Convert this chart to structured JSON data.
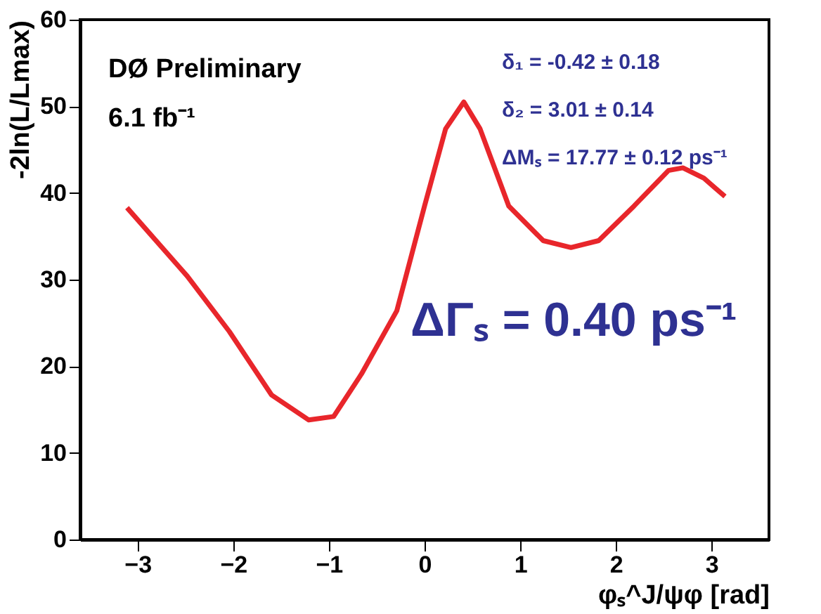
{
  "chart_data": {
    "type": "line",
    "xlabel": "φₛ^J/ψφ [rad]",
    "ylabel": "-2ln(L/Lmax)",
    "x": [
      -3.11,
      -2.48,
      -2.04,
      -1.6,
      -1.21,
      -0.95,
      -0.66,
      -0.29,
      0,
      0.22,
      0.41,
      0.58,
      0.88,
      1.24,
      1.53,
      1.82,
      2.19,
      2.55,
      2.7,
      2.92,
      3.14
    ],
    "series": [
      {
        "color": "#e8262b",
        "values": [
          38.3,
          30.4,
          24,
          16.7,
          13.8,
          14.2,
          19.1,
          26.4,
          38.5,
          47.4,
          50.5,
          47.4,
          38.5,
          34.5,
          33.7,
          34.5,
          38.5,
          42.6,
          42.9,
          41.7,
          39.6
        ]
      }
    ],
    "xlim": [
      -3.6,
      3.6
    ],
    "ylim": [
      0,
      60
    ],
    "xticks": [
      -3,
      -2,
      -1,
      0,
      1,
      2,
      3
    ],
    "yticks": [
      0,
      10,
      20,
      30,
      40,
      50,
      60
    ],
    "grid": false,
    "marker": "none",
    "line_style": "solid",
    "annotations": [
      "DØ Preliminary",
      "6.1 fb⁻¹",
      "δ₁ = -0.42 ± 0.18",
      "δ₂ = 3.01 ± 0.14",
      "ΔMₛ = 17.77 ± 0.12 ps⁻¹",
      "ΔΓₛ = 0.40 ps⁻¹"
    ]
  }
}
